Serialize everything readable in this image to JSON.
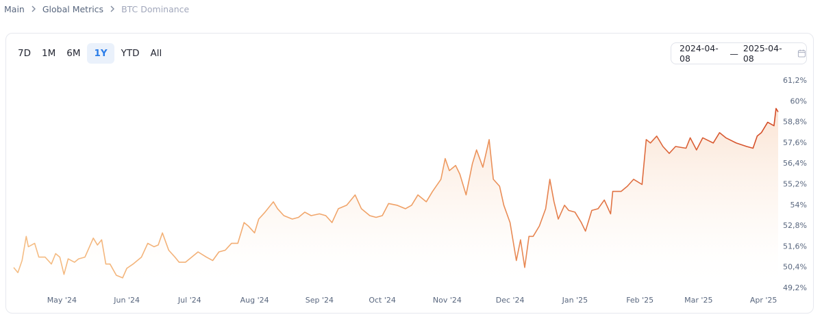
{
  "breadcrumb": [
    "Main",
    "Global Metrics",
    "BTC Dominance"
  ],
  "tabs": [
    {
      "label": "7D",
      "active": false
    },
    {
      "label": "1M",
      "active": false
    },
    {
      "label": "6M",
      "active": false
    },
    {
      "label": "1Y",
      "active": true
    },
    {
      "label": "YTD",
      "active": false
    },
    {
      "label": "All",
      "active": false
    }
  ],
  "date_range": {
    "start": "2024-04-08",
    "separator": "—",
    "end": "2025-04-08"
  },
  "chart_data": {
    "type": "line",
    "x": [
      0,
      2,
      4,
      6,
      7,
      10,
      12,
      15,
      18,
      20,
      22,
      24,
      26,
      29,
      31,
      34,
      38,
      40,
      42,
      44,
      46,
      49,
      52,
      54,
      57,
      61,
      64,
      67,
      69,
      71,
      74,
      77,
      79,
      82,
      84,
      88,
      92,
      95,
      98,
      101,
      104,
      107,
      110,
      112,
      115,
      117,
      120,
      124,
      126,
      129,
      133,
      136,
      139,
      142,
      146,
      149,
      152,
      155,
      159,
      163,
      166,
      170,
      173,
      176,
      179,
      183,
      187,
      190,
      193,
      197,
      200,
      204,
      206,
      208,
      211,
      213,
      216,
      219,
      221,
      224,
      227,
      229,
      232,
      234,
      237,
      240,
      242,
      244,
      246,
      248,
      251,
      254,
      256,
      258,
      260,
      263,
      265,
      268,
      271,
      273,
      276,
      279,
      282,
      285,
      286,
      290,
      293,
      296,
      300,
      302,
      304,
      307,
      310,
      313,
      316,
      321,
      323,
      326,
      329,
      334,
      337,
      340,
      345,
      350,
      353,
      355,
      357,
      360,
      363,
      364,
      365
    ],
    "series": [
      {
        "name": "BTC Dominance",
        "color_start": "#f5bd84",
        "color_end": "#d34a25",
        "values": [
          50.4,
          50.1,
          50.8,
          52.2,
          51.6,
          51.8,
          51.0,
          51.0,
          50.6,
          51.2,
          51.0,
          50.0,
          50.9,
          50.7,
          50.9,
          51.0,
          52.1,
          51.7,
          52.0,
          50.6,
          50.6,
          49.95,
          49.8,
          50.35,
          50.6,
          51.0,
          51.8,
          51.6,
          51.7,
          52.4,
          51.4,
          51.0,
          50.7,
          50.7,
          50.9,
          51.3,
          51.0,
          50.8,
          51.3,
          51.4,
          51.8,
          51.8,
          53.0,
          52.8,
          52.4,
          53.2,
          53.6,
          54.2,
          53.8,
          53.4,
          53.2,
          53.3,
          53.6,
          53.4,
          53.5,
          53.4,
          53.0,
          53.8,
          54.0,
          54.6,
          53.8,
          53.4,
          53.3,
          53.4,
          54.1,
          54.0,
          53.8,
          54.0,
          54.6,
          54.2,
          54.8,
          55.5,
          56.7,
          56.0,
          56.3,
          55.8,
          54.6,
          56.4,
          57.2,
          56.2,
          57.8,
          55.5,
          55.1,
          54.0,
          53.0,
          50.8,
          52.0,
          50.4,
          52.2,
          52.2,
          52.8,
          53.8,
          55.5,
          54.2,
          53.2,
          54.0,
          53.7,
          53.6,
          53.0,
          52.5,
          53.7,
          53.8,
          54.3,
          53.5,
          54.8,
          54.8,
          55.1,
          55.5,
          55.2,
          57.8,
          57.6,
          58.0,
          57.4,
          57.0,
          57.4,
          57.3,
          57.9,
          57.2,
          57.9,
          57.6,
          58.2,
          57.9,
          57.6,
          57.4,
          57.3,
          58.0,
          58.2,
          58.8,
          58.6,
          59.6,
          59.4
        ]
      }
    ],
    "xlim": [
      0,
      365
    ],
    "xticks": [
      {
        "value": 23,
        "label": "May '24"
      },
      {
        "value": 54,
        "label": "Jun '24"
      },
      {
        "value": 84,
        "label": "Jul '24"
      },
      {
        "value": 115,
        "label": "Aug '24"
      },
      {
        "value": 146,
        "label": "Sep '24"
      },
      {
        "value": 176,
        "label": "Oct '24"
      },
      {
        "value": 207,
        "label": "Nov '24"
      },
      {
        "value": 237,
        "label": "Dec '24"
      },
      {
        "value": 268,
        "label": "Jan '25"
      },
      {
        "value": 299,
        "label": "Feb '25"
      },
      {
        "value": 327,
        "label": "Mar '25"
      },
      {
        "value": 358,
        "label": "Apr '25"
      }
    ],
    "ylim": [
      49.2,
      61.2
    ],
    "yticks": [
      {
        "value": 49.2,
        "label": "49,2%"
      },
      {
        "value": 50.4,
        "label": "50,4%"
      },
      {
        "value": 51.6,
        "label": "51,6%"
      },
      {
        "value": 52.8,
        "label": "52,8%"
      },
      {
        "value": 54,
        "label": "54%"
      },
      {
        "value": 55.2,
        "label": "55,2%"
      },
      {
        "value": 56.4,
        "label": "56,4%"
      },
      {
        "value": 57.6,
        "label": "57,6%"
      },
      {
        "value": 58.8,
        "label": "58,8%"
      },
      {
        "value": 60,
        "label": "60%"
      },
      {
        "value": 61.2,
        "label": "61,2%"
      }
    ],
    "grid": false
  }
}
